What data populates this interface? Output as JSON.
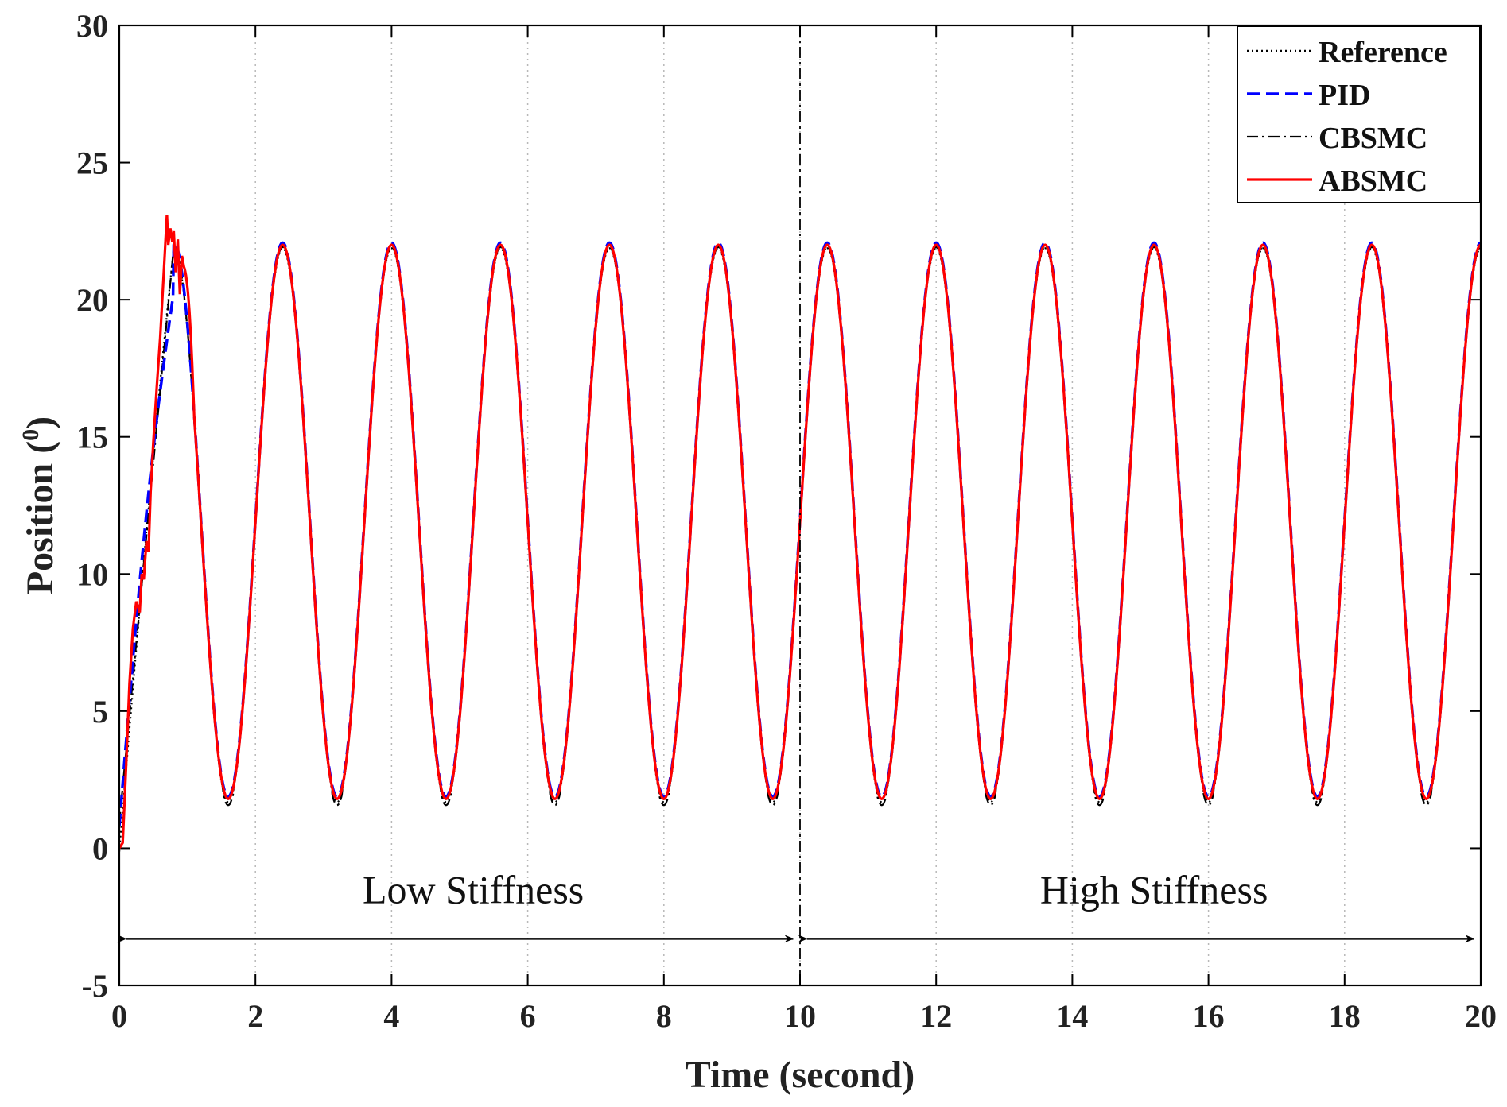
{
  "chart_data": {
    "type": "line",
    "title": "",
    "xlabel": "Time (second)",
    "ylabel": "Position (°)",
    "ylabel_main": "Position (",
    "ylabel_sup": "0",
    "ylabel_close": ")",
    "xlim": [
      0,
      20
    ],
    "ylim": [
      -5,
      30
    ],
    "xticks": [
      0,
      2,
      4,
      6,
      8,
      10,
      12,
      14,
      16,
      18,
      20
    ],
    "yticks": [
      -5,
      0,
      5,
      10,
      15,
      20,
      25,
      30
    ],
    "xtick_labels": [
      "0",
      "2",
      "4",
      "6",
      "8",
      "10",
      "12",
      "14",
      "16",
      "18",
      "20"
    ],
    "ytick_labels": [
      "-5",
      "0",
      "5",
      "10",
      "15",
      "20",
      "25",
      "30"
    ],
    "grid": "vertical dotted",
    "legend_position": "top-right",
    "signal": {
      "form": "sinusoid",
      "center": 11.9,
      "amplitude": 10.1,
      "period": 1.6,
      "peak_times": [
        0.8,
        2.4,
        4.0,
        5.6,
        7.2,
        8.8,
        10.4,
        12.0,
        13.6,
        15.2,
        16.8,
        18.4,
        20.0
      ],
      "trough_times": [
        1.6,
        3.2,
        4.8,
        6.4,
        8.0,
        9.6,
        11.2,
        12.8,
        14.4,
        16.0,
        17.6,
        19.2
      ],
      "peak_value": 22.0,
      "trough_value": 1.8,
      "start_value": 0
    },
    "series": [
      {
        "name": "Reference",
        "style": "dotted",
        "color": "#000000"
      },
      {
        "name": "PID",
        "style": "dashed",
        "color": "#0000ff"
      },
      {
        "name": "CBSMC",
        "style": "dash-dot",
        "color": "#000000"
      },
      {
        "name": "ABSMC",
        "style": "solid",
        "color": "#ff0000"
      }
    ],
    "absmc_startup": {
      "x": [
        0.0,
        0.05,
        0.1,
        0.15,
        0.2,
        0.25,
        0.3,
        0.33,
        0.36,
        0.4,
        0.43,
        0.46,
        0.5,
        0.55,
        0.6,
        0.65,
        0.68,
        0.7,
        0.72,
        0.75,
        0.78,
        0.8,
        0.83,
        0.86,
        0.89,
        0.92,
        0.95
      ],
      "y": [
        0.0,
        0.2,
        3.0,
        6.0,
        8.0,
        9.0,
        8.6,
        10.0,
        9.8,
        11.2,
        10.8,
        13.0,
        14.8,
        16.8,
        18.6,
        20.8,
        22.2,
        23.1,
        22.0,
        22.6,
        22.1,
        22.5,
        21.0,
        22.2,
        20.2,
        21.6,
        21.2
      ]
    },
    "vertical_divider_x": 10,
    "annotations": [
      {
        "text": "Low Stiffness",
        "x": 5.2,
        "y": -2.0
      },
      {
        "text": "High Stiffness",
        "x": 15.2,
        "y": -2.0
      }
    ],
    "arrows": [
      {
        "from": 0.1,
        "to": 9.9,
        "y": -3.3
      },
      {
        "from": 10.1,
        "to": 19.9,
        "y": -3.3
      }
    ]
  }
}
